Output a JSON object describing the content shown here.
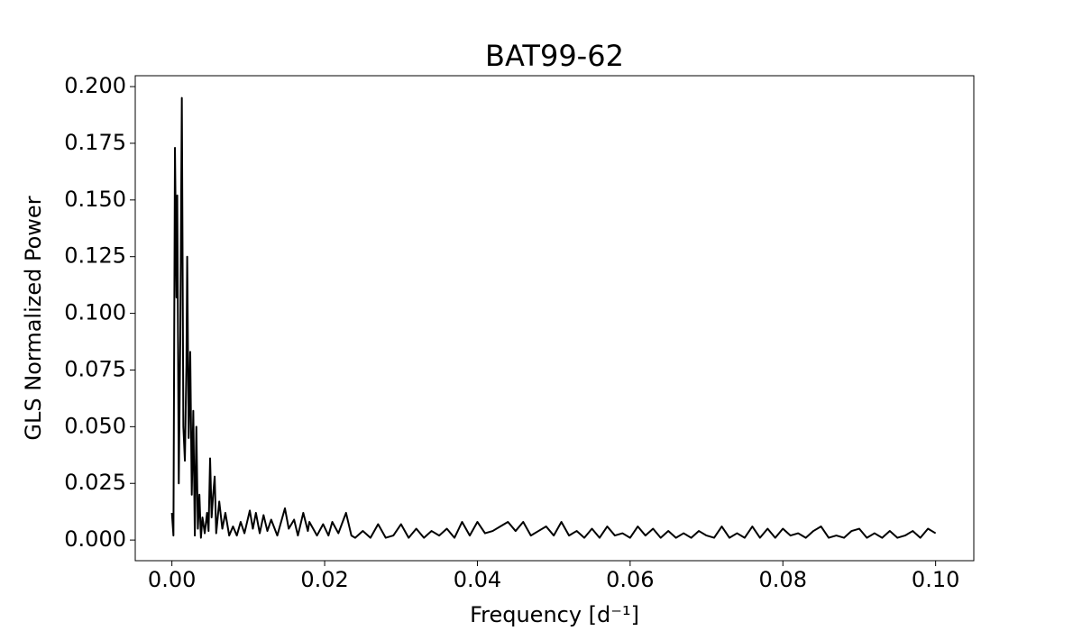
{
  "chart_data": {
    "type": "line",
    "title": "BAT99-62",
    "xlabel": "Frequency [d⁻¹]",
    "ylabel": "GLS Normalized Power",
    "color": "#000000",
    "x": [
      0.0,
      0.0002,
      0.0004,
      0.0006,
      0.0007,
      0.0009,
      0.0011,
      0.0013,
      0.0015,
      0.0017,
      0.0019,
      0.002,
      0.0022,
      0.0024,
      0.0026,
      0.0028,
      0.003,
      0.0032,
      0.0034,
      0.0036,
      0.0038,
      0.004,
      0.0043,
      0.0046,
      0.0048,
      0.005,
      0.0052,
      0.0054,
      0.0056,
      0.0058,
      0.0062,
      0.0066,
      0.007,
      0.0075,
      0.008,
      0.0085,
      0.009,
      0.0095,
      0.0102,
      0.0106,
      0.011,
      0.0115,
      0.012,
      0.0125,
      0.013,
      0.0138,
      0.0148,
      0.0153,
      0.016,
      0.0165,
      0.0172,
      0.0178,
      0.018,
      0.019,
      0.0198,
      0.0205,
      0.021,
      0.0218,
      0.0228,
      0.0235,
      0.024,
      0.025,
      0.026,
      0.027,
      0.028,
      0.029,
      0.03,
      0.031,
      0.032,
      0.033,
      0.034,
      0.035,
      0.036,
      0.037,
      0.038,
      0.039,
      0.04,
      0.041,
      0.042,
      0.043,
      0.044,
      0.045,
      0.046,
      0.047,
      0.048,
      0.049,
      0.05,
      0.051,
      0.052,
      0.053,
      0.054,
      0.055,
      0.056,
      0.057,
      0.058,
      0.059,
      0.06,
      0.061,
      0.062,
      0.063,
      0.064,
      0.065,
      0.066,
      0.067,
      0.068,
      0.069,
      0.07,
      0.071,
      0.072,
      0.073,
      0.074,
      0.075,
      0.076,
      0.077,
      0.078,
      0.079,
      0.08,
      0.081,
      0.082,
      0.083,
      0.084,
      0.085,
      0.086,
      0.087,
      0.088,
      0.089,
      0.09,
      0.091,
      0.092,
      0.093,
      0.094,
      0.095,
      0.096,
      0.097,
      0.098,
      0.099,
      0.1
    ],
    "values": [
      0.012,
      0.002,
      0.173,
      0.107,
      0.152,
      0.025,
      0.09,
      0.195,
      0.05,
      0.035,
      0.077,
      0.125,
      0.045,
      0.083,
      0.02,
      0.057,
      0.002,
      0.05,
      0.005,
      0.02,
      0.001,
      0.01,
      0.003,
      0.012,
      0.004,
      0.036,
      0.01,
      0.02,
      0.028,
      0.003,
      0.017,
      0.005,
      0.012,
      0.002,
      0.006,
      0.002,
      0.008,
      0.003,
      0.013,
      0.005,
      0.012,
      0.003,
      0.011,
      0.004,
      0.009,
      0.002,
      0.014,
      0.005,
      0.009,
      0.002,
      0.012,
      0.004,
      0.008,
      0.002,
      0.007,
      0.002,
      0.008,
      0.003,
      0.012,
      0.002,
      0.001,
      0.004,
      0.001,
      0.007,
      0.001,
      0.002,
      0.007,
      0.001,
      0.005,
      0.001,
      0.004,
      0.002,
      0.005,
      0.001,
      0.008,
      0.002,
      0.008,
      0.003,
      0.004,
      0.006,
      0.008,
      0.004,
      0.008,
      0.002,
      0.004,
      0.006,
      0.002,
      0.008,
      0.002,
      0.004,
      0.001,
      0.005,
      0.001,
      0.006,
      0.002,
      0.003,
      0.001,
      0.006,
      0.002,
      0.005,
      0.001,
      0.004,
      0.001,
      0.003,
      0.001,
      0.004,
      0.002,
      0.001,
      0.006,
      0.001,
      0.003,
      0.001,
      0.006,
      0.001,
      0.005,
      0.001,
      0.005,
      0.002,
      0.003,
      0.001,
      0.004,
      0.006,
      0.001,
      0.002,
      0.001,
      0.004,
      0.005,
      0.001,
      0.003,
      0.001,
      0.004,
      0.001,
      0.002,
      0.004,
      0.001,
      0.005,
      0.003
    ],
    "xlim": [
      -0.0048,
      0.105
    ],
    "ylim": [
      -0.0091,
      0.2048
    ],
    "xticks": [
      {
        "value": 0,
        "label": "0.00"
      },
      {
        "value": 0.02,
        "label": "0.02"
      },
      {
        "value": 0.04,
        "label": "0.04"
      },
      {
        "value": 0.06,
        "label": "0.06"
      },
      {
        "value": 0.08,
        "label": "0.08"
      },
      {
        "value": 0.1,
        "label": "0.10"
      }
    ],
    "yticks": [
      {
        "value": 0,
        "label": "0.000"
      },
      {
        "value": 0.025,
        "label": "0.025"
      },
      {
        "value": 0.05,
        "label": "0.050"
      },
      {
        "value": 0.075,
        "label": "0.075"
      },
      {
        "value": 0.1,
        "label": "0.100"
      },
      {
        "value": 0.125,
        "label": "0.125"
      },
      {
        "value": 0.15,
        "label": "0.150"
      },
      {
        "value": 0.175,
        "label": "0.175"
      },
      {
        "value": 0.2,
        "label": "0.200"
      }
    ],
    "grid": false
  }
}
